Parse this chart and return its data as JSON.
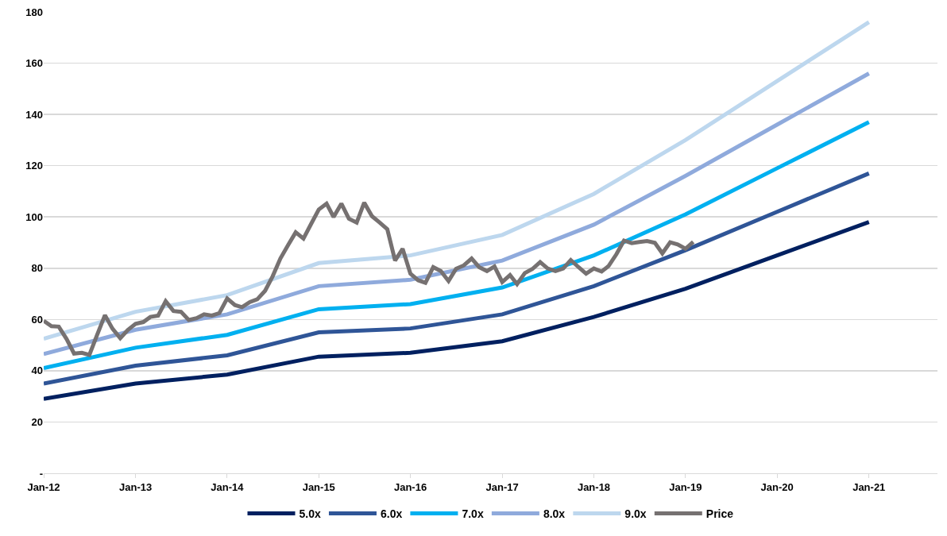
{
  "chart_data": {
    "type": "line",
    "xlim": [
      "2012-01",
      "2021-10"
    ],
    "xticks": [
      {
        "value": "2012-01",
        "label": "Jan-12"
      },
      {
        "value": "2013-01",
        "label": "Jan-13"
      },
      {
        "value": "2014-01",
        "label": "Jan-14"
      },
      {
        "value": "2015-01",
        "label": "Jan-15"
      },
      {
        "value": "2016-01",
        "label": "Jan-16"
      },
      {
        "value": "2017-01",
        "label": "Jan-17"
      },
      {
        "value": "2018-01",
        "label": "Jan-18"
      },
      {
        "value": "2019-01",
        "label": "Jan-19"
      },
      {
        "value": "2020-01",
        "label": "Jan-20"
      },
      {
        "value": "2021-01",
        "label": "Jan-21"
      }
    ],
    "ylim": [
      0,
      180
    ],
    "yticks": [
      {
        "value": 0,
        "label": "-"
      },
      20,
      40,
      60,
      80,
      100,
      120,
      140,
      160,
      180
    ],
    "grid": "y",
    "legend": "bottom",
    "marker": "none",
    "line_style": "solid",
    "series": [
      {
        "name": "5.0x",
        "color": "#002060",
        "x": [
          "2012-01",
          "2013-01",
          "2014-01",
          "2015-01",
          "2016-01",
          "2017-01",
          "2018-01",
          "2019-01",
          "2020-01",
          "2021-01"
        ],
        "values": [
          29,
          35,
          38.5,
          45.5,
          47,
          51.5,
          61,
          72,
          85,
          98
        ]
      },
      {
        "name": "6.0x",
        "color": "#2f5597",
        "x": [
          "2012-01",
          "2013-01",
          "2014-01",
          "2015-01",
          "2016-01",
          "2017-01",
          "2018-01",
          "2019-01",
          "2020-01",
          "2021-01"
        ],
        "values": [
          35,
          42,
          46,
          55,
          56.5,
          62,
          73,
          87,
          102,
          117
        ]
      },
      {
        "name": "7.0x",
        "color": "#00b0f0",
        "x": [
          "2012-01",
          "2013-01",
          "2014-01",
          "2015-01",
          "2016-01",
          "2017-01",
          "2018-01",
          "2019-01",
          "2020-01",
          "2021-01"
        ],
        "values": [
          41,
          49,
          54,
          64,
          66,
          72.5,
          85,
          101,
          119,
          137
        ]
      },
      {
        "name": "8.0x",
        "color": "#8faadc",
        "x": [
          "2012-01",
          "2013-01",
          "2014-01",
          "2015-01",
          "2016-01",
          "2017-01",
          "2018-01",
          "2019-01",
          "2020-01",
          "2021-01"
        ],
        "values": [
          46.5,
          56,
          62,
          73,
          75.5,
          83,
          97,
          116,
          136,
          156
        ]
      },
      {
        "name": "9.0x",
        "color": "#bdd7ee",
        "x": [
          "2012-01",
          "2013-01",
          "2014-01",
          "2015-01",
          "2016-01",
          "2017-01",
          "2018-01",
          "2019-01",
          "2020-01",
          "2021-01"
        ],
        "values": [
          52.5,
          63,
          69.5,
          82,
          85,
          93,
          109,
          130,
          153,
          176
        ]
      },
      {
        "name": "Price",
        "color": "#767171",
        "x": [
          "2012-01",
          "2012-02",
          "2012-03",
          "2012-04",
          "2012-05",
          "2012-06",
          "2012-07",
          "2012-08",
          "2012-09",
          "2012-10",
          "2012-11",
          "2012-12",
          "2013-01",
          "2013-02",
          "2013-03",
          "2013-04",
          "2013-05",
          "2013-06",
          "2013-07",
          "2013-08",
          "2013-09",
          "2013-10",
          "2013-11",
          "2013-12",
          "2014-01",
          "2014-02",
          "2014-03",
          "2014-04",
          "2014-05",
          "2014-06",
          "2014-07",
          "2014-08",
          "2014-09",
          "2014-10",
          "2014-11",
          "2014-12",
          "2015-01",
          "2015-02",
          "2015-03",
          "2015-04",
          "2015-05",
          "2015-06",
          "2015-07",
          "2015-08",
          "2015-09",
          "2015-10",
          "2015-11",
          "2015-12",
          "2016-01",
          "2016-02",
          "2016-03",
          "2016-04",
          "2016-05",
          "2016-06",
          "2016-07",
          "2016-08",
          "2016-09",
          "2016-10",
          "2016-11",
          "2016-12",
          "2017-01",
          "2017-02",
          "2017-03",
          "2017-04",
          "2017-05",
          "2017-06",
          "2017-07",
          "2017-08",
          "2017-09",
          "2017-10",
          "2017-11",
          "2017-12",
          "2018-01",
          "2018-02",
          "2018-03",
          "2018-04",
          "2018-05",
          "2018-06",
          "2018-07",
          "2018-08",
          "2018-09",
          "2018-10",
          "2018-11",
          "2018-12",
          "2019-01",
          "2019-02"
        ],
        "values": [
          59.5,
          57.4,
          57.2,
          52.4,
          46.7,
          47,
          46.2,
          54,
          61.7,
          56.4,
          52.7,
          55.9,
          58.3,
          59,
          61,
          61.5,
          67.1,
          63.3,
          63,
          59.8,
          60.5,
          62,
          61.5,
          62.5,
          68.2,
          65.6,
          64.8,
          66.8,
          67.9,
          71.2,
          76.8,
          83.8,
          89.1,
          94,
          91.6,
          97.2,
          102.9,
          105.2,
          100,
          105.2,
          99.3,
          97.8,
          105.6,
          100.3,
          97.8,
          95.2,
          83,
          87.6,
          77.9,
          75.3,
          74.3,
          80.4,
          78.9,
          75,
          79.8,
          81.1,
          83.8,
          80.4,
          78.9,
          80.7,
          74.6,
          77.3,
          73.8,
          78.1,
          79.7,
          82.4,
          79.9,
          78.9,
          79.9,
          83.2,
          80.4,
          77.9,
          79.9,
          78.7,
          80.9,
          85.5,
          90.8,
          89.8,
          90.2,
          90.6,
          89.9,
          85.8,
          90.1,
          89.3,
          87.6,
          90.3
        ]
      }
    ]
  }
}
